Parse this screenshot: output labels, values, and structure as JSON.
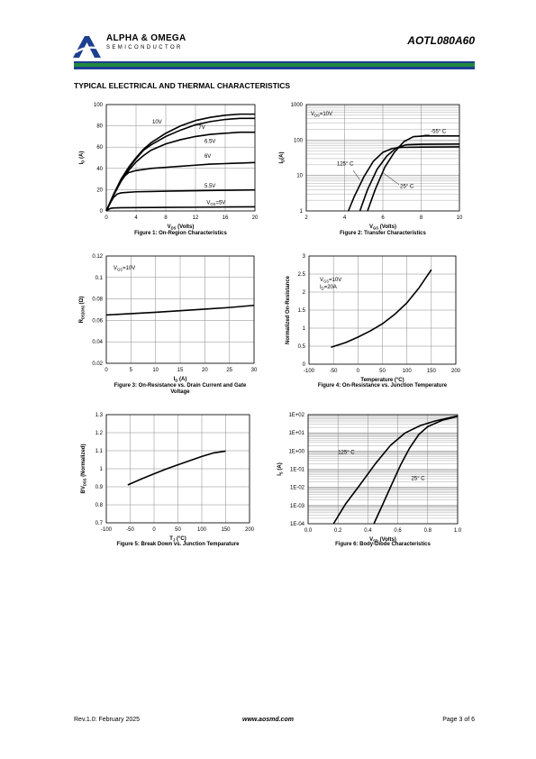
{
  "header": {
    "brand_name": "ALPHA & OMEGA",
    "brand_sub": "SEMICONDUCTOR",
    "part_number": "AOTL080A60",
    "bar_colors": [
      "#1d3f8f",
      "#1f8a3c",
      "#1d3f8f"
    ]
  },
  "section_title": "TYPICAL ELECTRICAL AND THERMAL CHARACTERISTICS",
  "footer": {
    "revision": "Rev.1.0: February 2025",
    "website": "www.aosmd.com",
    "page": "Page 3 of 6"
  },
  "chart_data": [
    {
      "id": "fig1",
      "type": "line",
      "caption": [
        "Figure 1: On-Region Characteristics"
      ],
      "xlabel": "VDS (Volts)",
      "ylabel": "ID (A)",
      "xlim": [
        0,
        20
      ],
      "ylim": [
        0,
        100
      ],
      "xticks": [
        0,
        4,
        8,
        12,
        16,
        20
      ],
      "yticks": [
        0,
        20,
        40,
        60,
        80,
        100
      ],
      "series": [
        {
          "name": "10V",
          "x": [
            0,
            1,
            2,
            3,
            4,
            5,
            6,
            8,
            10,
            12,
            14,
            16,
            18,
            20
          ],
          "y": [
            0,
            15,
            30,
            41,
            50,
            58,
            64,
            73,
            80,
            85,
            88,
            90,
            91,
            91
          ]
        },
        {
          "name": "7V",
          "x": [
            0,
            1,
            2,
            3,
            4,
            5,
            6,
            8,
            10,
            12,
            14,
            16,
            18,
            20
          ],
          "y": [
            0,
            15,
            29,
            40,
            49,
            57,
            62,
            70,
            76,
            81,
            84,
            86,
            87,
            87
          ]
        },
        {
          "name": "6.5V",
          "x": [
            0,
            1,
            2,
            3,
            4,
            5,
            6,
            8,
            10,
            12,
            14,
            16,
            18,
            20
          ],
          "y": [
            0,
            15,
            28,
            38,
            46,
            52,
            57,
            63,
            67,
            70,
            72,
            73,
            74,
            74
          ]
        },
        {
          "name": "6V",
          "x": [
            0,
            1,
            2,
            3,
            4,
            6,
            8,
            10,
            12,
            14,
            16,
            18,
            20
          ],
          "y": [
            0,
            16,
            30,
            36,
            38,
            40,
            41,
            42,
            43,
            44,
            44.5,
            45,
            45.5
          ]
        },
        {
          "name": "5.5V",
          "x": [
            0,
            0.5,
            1,
            1.5,
            2,
            3,
            4,
            6,
            8,
            12,
            16,
            20
          ],
          "y": [
            0,
            7,
            13,
            16,
            17,
            17.5,
            18,
            18.3,
            18.6,
            19,
            19.4,
            19.8
          ]
        },
        {
          "name": "VGS=5V",
          "x": [
            0,
            0.3,
            0.6,
            1,
            2,
            4,
            8,
            12,
            16,
            20
          ],
          "y": [
            0,
            1.5,
            2.5,
            2.8,
            3,
            3.1,
            3.3,
            3.5,
            3.7,
            3.9
          ]
        }
      ],
      "annotations": [
        "10V",
        "7V",
        "6.5V",
        "6V",
        "5.5V",
        "VGS=5V"
      ]
    },
    {
      "id": "fig2",
      "type": "line",
      "yscale": "log",
      "caption": [
        "Figure 2: Transfer Characteristics"
      ],
      "xlabel": "VGS (Volts)",
      "ylabel": "ID(A)",
      "xlim": [
        2,
        10
      ],
      "ylim": [
        1,
        1000
      ],
      "xticks": [
        2,
        4,
        6,
        8,
        10
      ],
      "yticks": [
        1,
        10,
        100,
        1000
      ],
      "series": [
        {
          "name": "125° C",
          "x": [
            4.2,
            4.5,
            5.0,
            5.5,
            6.0,
            6.5,
            7.0,
            8.0,
            10.0
          ],
          "y": [
            1,
            2.5,
            9,
            25,
            45,
            58,
            62,
            63,
            64
          ]
        },
        {
          "name": "25° C",
          "x": [
            4.8,
            5.2,
            5.7,
            6.2,
            6.7,
            7.2,
            8.0,
            10.0
          ],
          "y": [
            1,
            4,
            15,
            35,
            60,
            73,
            76,
            77
          ]
        },
        {
          "name": "-55° C",
          "x": [
            5.2,
            5.6,
            6.1,
            6.6,
            7.1,
            7.6,
            8.2,
            10.0
          ],
          "y": [
            1,
            4,
            17,
            45,
            90,
            125,
            130,
            130
          ]
        }
      ],
      "annotations": [
        "VDS=10V",
        "-55° C",
        "125° C",
        "25° C"
      ]
    },
    {
      "id": "fig3",
      "type": "line",
      "caption": [
        "Figure 3: On-Resistance vs. Drain Current and Gate",
        "Voltage"
      ],
      "xlabel": "ID (A)",
      "ylabel": "RDS(ON) (Ω)",
      "xlim": [
        0,
        30
      ],
      "ylim": [
        0.02,
        0.12
      ],
      "xticks": [
        0,
        5,
        10,
        15,
        20,
        25,
        30
      ],
      "yticks": [
        0.02,
        0.04,
        0.06,
        0.08,
        0.1,
        0.12
      ],
      "series": [
        {
          "name": "VGS=10V",
          "x": [
            0,
            5,
            10,
            15,
            20,
            25,
            30
          ],
          "y": [
            0.065,
            0.0663,
            0.0675,
            0.069,
            0.0705,
            0.072,
            0.074
          ]
        }
      ],
      "annotations": [
        "VGS=10V"
      ]
    },
    {
      "id": "fig4",
      "type": "line",
      "caption": [
        "Figure 4: On-Resistance vs. Junction Temperature"
      ],
      "xlabel": "Temperature (°C)",
      "ylabel": "Normalized On-Resistance",
      "xlim": [
        -100,
        200
      ],
      "ylim": [
        0,
        3
      ],
      "xticks": [
        -100,
        -50,
        0,
        50,
        100,
        150,
        200
      ],
      "yticks": [
        0,
        0.5,
        1,
        1.5,
        2,
        2.5,
        3
      ],
      "series": [
        {
          "name": "VGS=10V ID=20A",
          "x": [
            -55,
            -25,
            0,
            25,
            50,
            75,
            100,
            125,
            150
          ],
          "y": [
            0.47,
            0.6,
            0.75,
            0.92,
            1.12,
            1.38,
            1.7,
            2.12,
            2.62
          ]
        }
      ],
      "annotations": [
        "VGS=10V",
        "ID=20A"
      ]
    },
    {
      "id": "fig5",
      "type": "line",
      "caption": [
        "Figure 5: Break Down vs. Junction Temparature"
      ],
      "xlabel": "TJ (°C)",
      "ylabel": "BVDSS (Normalized)",
      "xlim": [
        -100,
        200
      ],
      "ylim": [
        0.7,
        1.3
      ],
      "xticks": [
        -100,
        -50,
        0,
        50,
        100,
        150,
        200
      ],
      "yticks": [
        0.7,
        0.8,
        0.9,
        1,
        1.1,
        1.2,
        1.3
      ],
      "series": [
        {
          "name": "BVDSS",
          "x": [
            -55,
            -25,
            0,
            25,
            50,
            75,
            100,
            125,
            150
          ],
          "y": [
            0.91,
            0.945,
            0.972,
            0.998,
            1.022,
            1.045,
            1.068,
            1.088,
            1.098
          ]
        }
      ],
      "annotations": []
    },
    {
      "id": "fig6",
      "type": "line",
      "yscale": "log",
      "caption": [
        "Figure 6: Body-Diode Characteristics"
      ],
      "xlabel": "VSD (Volts)",
      "ylabel": "IS (A)",
      "xlim": [
        0,
        1
      ],
      "ylim": [
        0.0001,
        100
      ],
      "xticks": [
        0,
        0.2,
        0.4,
        0.6,
        0.8,
        1
      ],
      "xtick_labels": [
        "0.0",
        "0.2",
        "0.4",
        "0.6",
        "0.8",
        "1.0"
      ],
      "yticks": [
        0.0001,
        0.001,
        0.01,
        0.1,
        1,
        10,
        100
      ],
      "ytick_labels": [
        "1E-04",
        "1E-03",
        "1E-02",
        "1E-01",
        "1E+00",
        "1E+01",
        "1E+02"
      ],
      "series": [
        {
          "name": "125° C",
          "x": [
            0.17,
            0.25,
            0.35,
            0.45,
            0.55,
            0.65,
            0.75,
            0.85,
            1.0
          ],
          "y": [
            0.0001,
            0.0012,
            0.015,
            0.2,
            2,
            10,
            25,
            45,
            85
          ]
        },
        {
          "name": "25° C",
          "x": [
            0.44,
            0.5,
            0.56,
            0.62,
            0.68,
            0.74,
            0.8,
            0.9,
            1.0
          ],
          "y": [
            0.0001,
            0.0012,
            0.015,
            0.18,
            1.5,
            8,
            22,
            50,
            80
          ]
        }
      ],
      "annotations": [
        "125° C",
        "25° C"
      ]
    }
  ]
}
